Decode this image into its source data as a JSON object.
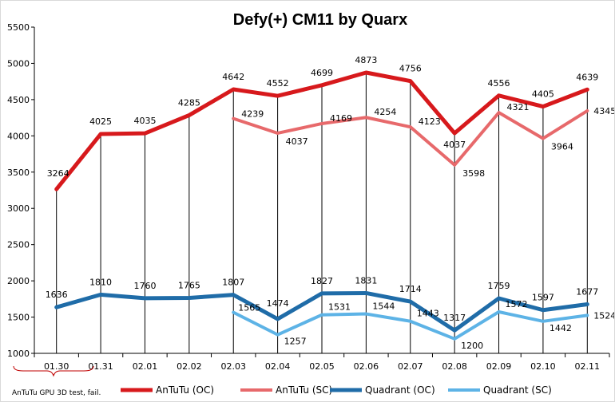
{
  "chart_data": {
    "type": "line",
    "title": "Defy(+) CM11 by Quarx",
    "categories": [
      "01.30",
      "01.31",
      "02.01",
      "02.02",
      "02.03",
      "02.04",
      "02.05",
      "02.06",
      "02.07",
      "02.08",
      "02.09",
      "02.10",
      "02.11"
    ],
    "ylim": [
      1000,
      5500
    ],
    "yticks": [
      1000,
      1500,
      2000,
      2500,
      3000,
      3500,
      4000,
      4500,
      5000,
      5500
    ],
    "grid": "vertical drop lines at each category",
    "legend_position": "bottom",
    "series": [
      {
        "name": "AnTuTu (OC)",
        "color": "#d7191c",
        "width": 5,
        "values": [
          3264,
          4025,
          4035,
          4285,
          4642,
          4552,
          4699,
          4873,
          4756,
          4037,
          4556,
          4405,
          4639
        ]
      },
      {
        "name": "AnTuTu (SC)",
        "color": "#e7696b",
        "width": 4,
        "values": [
          null,
          null,
          null,
          null,
          4239,
          4037,
          4169,
          4254,
          4123,
          3598,
          4321,
          3964,
          4345
        ]
      },
      {
        "name": "Quadrant (OC)",
        "color": "#1f6ca8",
        "width": 5,
        "values": [
          1636,
          1810,
          1760,
          1765,
          1807,
          1474,
          1827,
          1831,
          1714,
          1317,
          1759,
          1597,
          1677
        ]
      },
      {
        "name": "Quadrant (SC)",
        "color": "#5db3e6",
        "width": 4,
        "values": [
          null,
          null,
          null,
          null,
          1565,
          1257,
          1531,
          1544,
          1443,
          1200,
          1572,
          1442,
          1524
        ]
      }
    ],
    "annotation": "AnTuTu GPU 3D test, fail."
  }
}
